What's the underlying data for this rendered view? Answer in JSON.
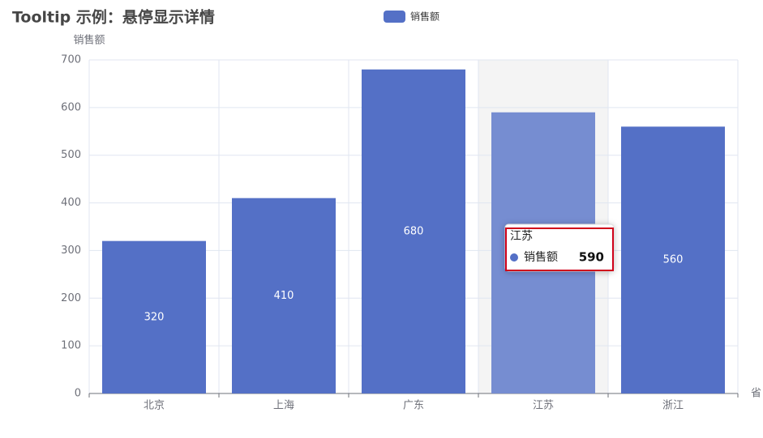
{
  "chart_data": {
    "type": "bar",
    "title": "Tooltip 示例：悬停显示详情",
    "x_label": "省",
    "y_label": "销售额",
    "categories": [
      "北京",
      "上海",
      "广东",
      "江苏",
      "浙江"
    ],
    "series": [
      {
        "name": "销售额",
        "color": "#5470c6",
        "values": [
          320,
          410,
          680,
          590,
          560
        ]
      }
    ],
    "ylim": [
      0,
      700
    ],
    "yticks": [
      0,
      100,
      200,
      300,
      400,
      500,
      600,
      700
    ],
    "grid": true,
    "legend": "top",
    "tooltip_index": 3
  }
}
